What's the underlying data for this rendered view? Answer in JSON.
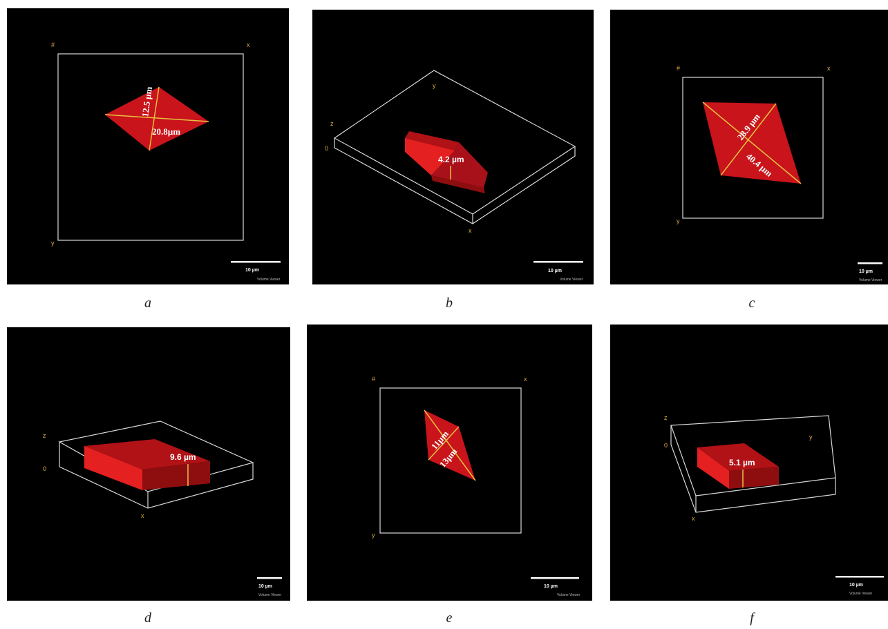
{
  "panels": [
    {
      "caption": "a",
      "measurements": [
        "12.5 µm",
        "20.8µm"
      ],
      "axes": {
        "origin": "#",
        "x": "x",
        "y": "y"
      },
      "scale_bar": "10 µm",
      "watermark": "Volume Viewer"
    },
    {
      "caption": "b",
      "measurements": [
        "4.2 µm"
      ],
      "axes": {
        "z": "z",
        "zero": "0",
        "x": "x",
        "y": "y"
      },
      "scale_bar": "10 µm",
      "watermark": "Volume Viewer"
    },
    {
      "caption": "c",
      "measurements": [
        "28.9 µm",
        "40.4 µm"
      ],
      "axes": {
        "origin": "#",
        "x": "x",
        "y": "y"
      },
      "scale_bar": "10 µm",
      "watermark": "Volume Viewer"
    },
    {
      "caption": "d",
      "measurements": [
        "9.6 µm"
      ],
      "axes": {
        "z": "z",
        "zero": "0",
        "x": "x"
      },
      "scale_bar": "10 µm",
      "watermark": "Volume Viewer"
    },
    {
      "caption": "e",
      "measurements": [
        "11µm",
        "13µm"
      ],
      "axes": {
        "origin": "#",
        "x": "x",
        "y": "y"
      },
      "scale_bar": "10 µm",
      "watermark": "Volume Viewer"
    },
    {
      "caption": "f",
      "measurements": [
        "5.1 µm"
      ],
      "axes": {
        "z": "z",
        "zero": "0",
        "x": "x",
        "y": "y"
      },
      "scale_bar": "10 µm",
      "watermark": "Volume Viewer"
    }
  ],
  "colors": {
    "crystal": "#c8141a",
    "crystal_light": "#e52020",
    "crystal_dark": "#8e0e10",
    "measure_line": "#e8c040",
    "box_line": "#d8d8d8"
  }
}
